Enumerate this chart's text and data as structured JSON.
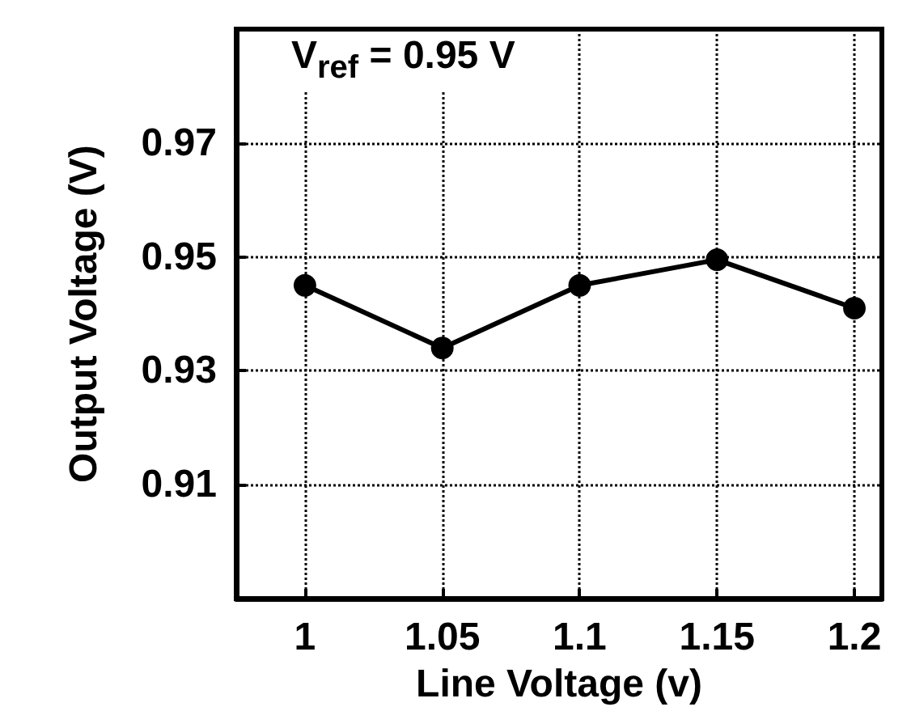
{
  "chart_data": {
    "type": "line",
    "xlabel": "Line Voltage (v)",
    "ylabel": "Output Voltage (V)",
    "x": [
      1,
      1.05,
      1.1,
      1.15,
      1.2
    ],
    "series": [
      {
        "color": "#000000",
        "values": [
          0.945,
          0.934,
          0.945,
          0.9495,
          0.941
        ]
      }
    ],
    "xlim": [
      0.975,
      1.21
    ],
    "xticks": [
      1,
      1.05,
      1.1,
      1.15,
      1.2
    ],
    "ylim": [
      0.89,
      0.99
    ],
    "yticks": [
      0.91,
      0.93,
      0.95,
      0.97
    ],
    "grid": true,
    "marker": "circle",
    "line_style": "solid",
    "annotations": [
      "V$_{ref}$ = 0.95 V"
    ]
  }
}
